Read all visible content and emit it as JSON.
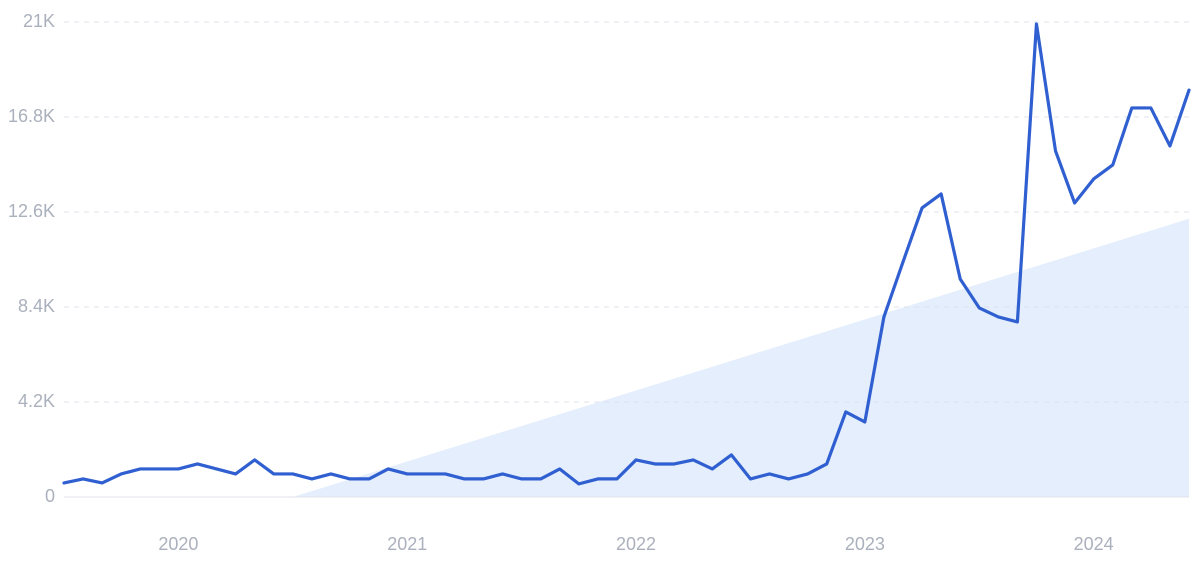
{
  "chart_data": {
    "type": "line",
    "color": "#2f5fd0",
    "categories": [
      null,
      null,
      null,
      null,
      null,
      null,
      "2020",
      null,
      null,
      null,
      null,
      null,
      null,
      null,
      null,
      null,
      null,
      null,
      "2021",
      null,
      null,
      null,
      null,
      null,
      null,
      null,
      null,
      null,
      null,
      null,
      "2022",
      null,
      null,
      null,
      null,
      null,
      null,
      null,
      null,
      null,
      null,
      null,
      "2023",
      null,
      null,
      null,
      null,
      null,
      null,
      null,
      null,
      null,
      null,
      null,
      "2024",
      null,
      null,
      null,
      null,
      null
    ],
    "values": [
      620,
      800,
      620,
      1020,
      1240,
      1240,
      1240,
      1460,
      1240,
      1020,
      1640,
      1020,
      1020,
      800,
      1020,
      800,
      800,
      1240,
      1020,
      1020,
      1020,
      800,
      800,
      1020,
      800,
      800,
      1240,
      580,
      800,
      800,
      1640,
      1460,
      1460,
      1640,
      1240,
      1860,
      800,
      1020,
      800,
      1020,
      1460,
      3760,
      3320,
      7960,
      10390,
      12780,
      13400,
      9640,
      8360,
      7960,
      7740,
      20910,
      15300,
      13000,
      14060,
      14680,
      17200,
      17200,
      15520,
      17990
    ],
    "ylim": [
      0,
      21000
    ],
    "yticks": [
      0,
      {
        "value": 4200,
        "label": "4.2K"
      },
      {
        "value": 8400,
        "label": "8.4K"
      },
      {
        "value": 12600,
        "label": "12.6K"
      },
      {
        "value": 16800,
        "label": "16.8K"
      },
      {
        "value": 21000,
        "label": "21K"
      }
    ],
    "grid": true,
    "trend": {
      "color": "#e4eefc",
      "start": {
        "index": 12,
        "value": 0
      },
      "end": {
        "index": 59,
        "value": 12300
      }
    }
  }
}
